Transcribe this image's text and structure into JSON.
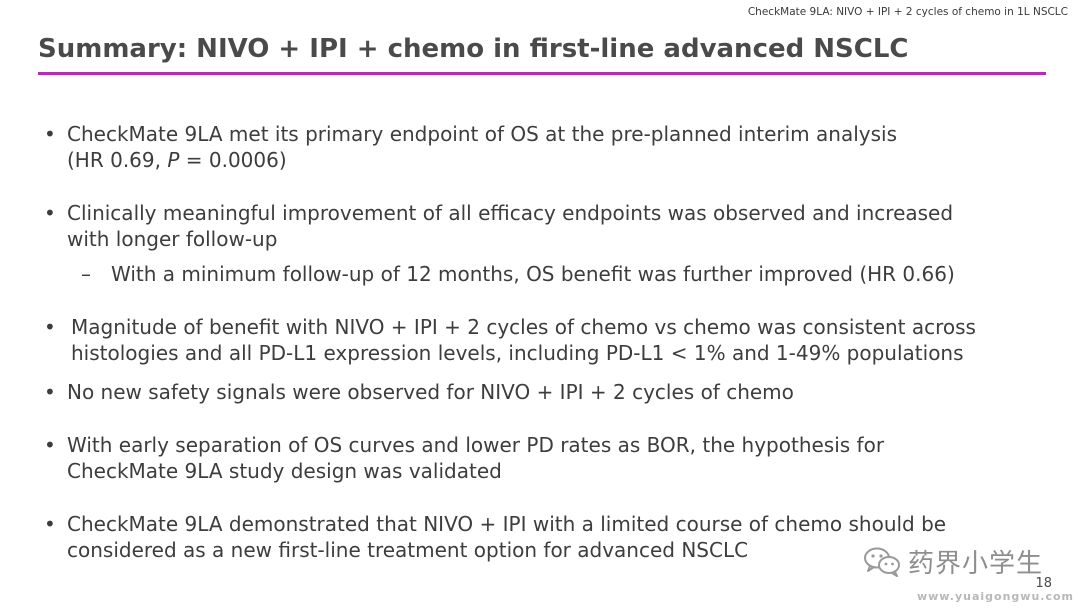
{
  "header": {
    "tag": "CheckMate 9LA: NIVO + IPI + 2 cycles of chemo in 1L NSCLC"
  },
  "title": "Summary: NIVO + IPI + chemo in first-line advanced NSCLC",
  "accent_color": "#b22fb2",
  "bullets": [
    {
      "marker": "•",
      "line1": "CheckMate 9LA met its primary endpoint of OS at the pre-planned interim analysis",
      "line2_pre": "(HR 0.69, ",
      "line2_italic": "P",
      "line2_post": " = 0.0006)"
    },
    {
      "marker": "•",
      "line1": "Clinically meaningful improvement of all efficacy endpoints was observed and increased",
      "line2": "with longer follow-up"
    },
    {
      "marker": "–",
      "line1": "With a minimum follow-up of 12 months, OS benefit was further improved (HR 0.66)"
    },
    {
      "marker": "•",
      "line1": "Magnitude of benefit with NIVO + IPI + 2 cycles of chemo vs chemo was consistent across",
      "line2": "histologies and all PD-L1 expression levels, including PD-L1 < 1% and 1-49% populations"
    },
    {
      "marker": "•",
      "line1": "No new safety signals were observed for NIVO + IPI + 2 cycles of chemo"
    },
    {
      "marker": "•",
      "line1": "With early separation of OS curves and lower PD rates as BOR, the hypothesis for",
      "line2": "CheckMate 9LA study design was validated"
    },
    {
      "marker": "•",
      "line1": "CheckMate 9LA demonstrated that NIVO + IPI with a limited course of chemo should be",
      "line2": "considered as a new first-line treatment option for advanced NSCLC"
    }
  ],
  "watermark": {
    "icon": "wechat-icon",
    "text": "药界小学生",
    "site": "www.yuaigongwu.com"
  },
  "page_number": "18"
}
